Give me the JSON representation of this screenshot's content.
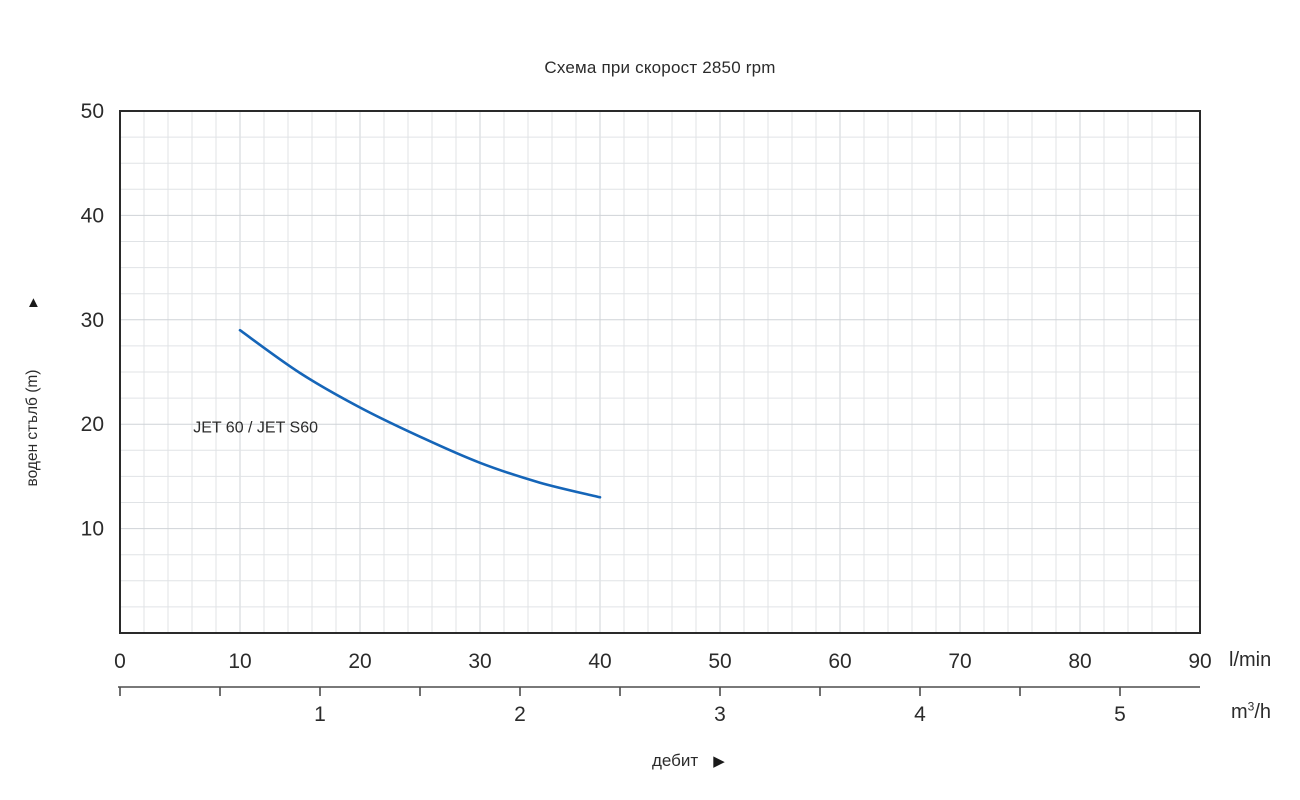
{
  "title": "Схема при скорост 2850 rpm",
  "labels": {
    "y_axis": "воден стълб (m)",
    "y_axis_arrow": "▲",
    "flow": "дебит",
    "flow_arrow": "▶",
    "unit_primary": "l/min",
    "unit_secondary": {
      "base": "m",
      "sup": "3",
      "rest": "/h"
    }
  },
  "colors": {
    "curve": "#1565b8",
    "text": "#2b2b2b",
    "border": "#2a2a2a",
    "grid_minor": "#e0e3e6",
    "grid_major": "#cfd3d7",
    "secondary_axis": "#4d4d4d"
  },
  "chart_data": {
    "type": "line",
    "title": "Схема при скорост 2850 rpm",
    "series": [
      {
        "name": "JET 60 / JET S60",
        "color": "#1565b8",
        "x": [
          10,
          15,
          20,
          25,
          30,
          35,
          40
        ],
        "y": [
          29,
          24.9,
          21.6,
          18.8,
          16.3,
          14.4,
          13
        ],
        "label_pos": {
          "x": 6.1,
          "y": 20.2
        }
      }
    ],
    "x_axis": {
      "label": "дебит",
      "unit": "l/min",
      "min": 0,
      "max": 90,
      "tick_step": 10,
      "minor_step": 2,
      "ticks": [
        0,
        10,
        20,
        30,
        40,
        50,
        60,
        70,
        80,
        90
      ]
    },
    "x_axis_secondary": {
      "unit": "m³/h",
      "min": 0,
      "max": 5.4,
      "tick_step": 0.5,
      "label_values": [
        1,
        2,
        3,
        4,
        5
      ],
      "l_min_per_unit": 16.6667
    },
    "y_axis": {
      "label": "воден стълб (m)",
      "min": 0,
      "max": 50,
      "tick_step": 10,
      "minor_step": 2.5,
      "ticks": [
        10,
        20,
        30,
        40,
        50
      ]
    },
    "grid": true,
    "legend": "inline-curve-label"
  }
}
